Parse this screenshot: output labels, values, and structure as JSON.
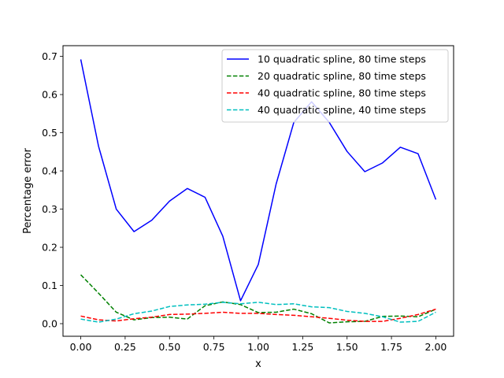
{
  "chart_data": {
    "type": "line",
    "title": "",
    "xlabel": "x",
    "ylabel": "Percentage error",
    "xlim": [
      -0.1,
      2.1
    ],
    "ylim": [
      -0.033,
      0.728
    ],
    "xticks": [
      0.0,
      0.25,
      0.5,
      0.75,
      1.0,
      1.25,
      1.5,
      1.75,
      2.0
    ],
    "xtick_labels": [
      "0.00",
      "0.25",
      "0.50",
      "0.75",
      "1.00",
      "1.25",
      "1.50",
      "1.75",
      "2.00"
    ],
    "yticks": [
      0.0,
      0.1,
      0.2,
      0.3,
      0.4,
      0.5,
      0.6,
      0.7
    ],
    "ytick_labels": [
      "0.0",
      "0.1",
      "0.2",
      "0.3",
      "0.4",
      "0.5",
      "0.6",
      "0.7"
    ],
    "grid": false,
    "legend_position": "top-right",
    "x": [
      0.0,
      0.1,
      0.2,
      0.3,
      0.4,
      0.5,
      0.6,
      0.7,
      0.8,
      0.9,
      1.0,
      1.1,
      1.2,
      1.3,
      1.4,
      1.5,
      1.6,
      1.7,
      1.8,
      1.9,
      2.0
    ],
    "series": [
      {
        "name": "10 quadratic spline, 80 time steps",
        "color": "#0000ff",
        "style": "solid",
        "values": [
          0.692,
          0.465,
          0.3,
          0.241,
          0.271,
          0.321,
          0.354,
          0.331,
          0.229,
          0.06,
          0.155,
          0.365,
          0.527,
          0.581,
          0.527,
          0.451,
          0.398,
          0.421,
          0.462,
          0.445,
          0.325
        ]
      },
      {
        "name": "20 quadratic spline, 80 time steps",
        "color": "#008000",
        "style": "dashed",
        "values": [
          0.128,
          0.08,
          0.03,
          0.01,
          0.016,
          0.017,
          0.012,
          0.047,
          0.057,
          0.05,
          0.029,
          0.03,
          0.038,
          0.026,
          0.002,
          0.005,
          0.006,
          0.019,
          0.02,
          0.018,
          0.038
        ]
      },
      {
        "name": "40 quadratic spline, 80 time steps",
        "color": "#ff0000",
        "style": "dashed",
        "values": [
          0.02,
          0.01,
          0.007,
          0.013,
          0.017,
          0.024,
          0.025,
          0.027,
          0.03,
          0.027,
          0.027,
          0.024,
          0.022,
          0.018,
          0.014,
          0.009,
          0.006,
          0.006,
          0.014,
          0.024,
          0.038
        ]
      },
      {
        "name": "40 quadratic spline, 40 time steps",
        "color": "#00bfbf",
        "style": "dashed",
        "values": [
          0.012,
          0.004,
          0.012,
          0.026,
          0.033,
          0.045,
          0.049,
          0.051,
          0.056,
          0.052,
          0.056,
          0.05,
          0.052,
          0.044,
          0.042,
          0.032,
          0.027,
          0.018,
          0.004,
          0.006,
          0.03
        ]
      }
    ]
  }
}
